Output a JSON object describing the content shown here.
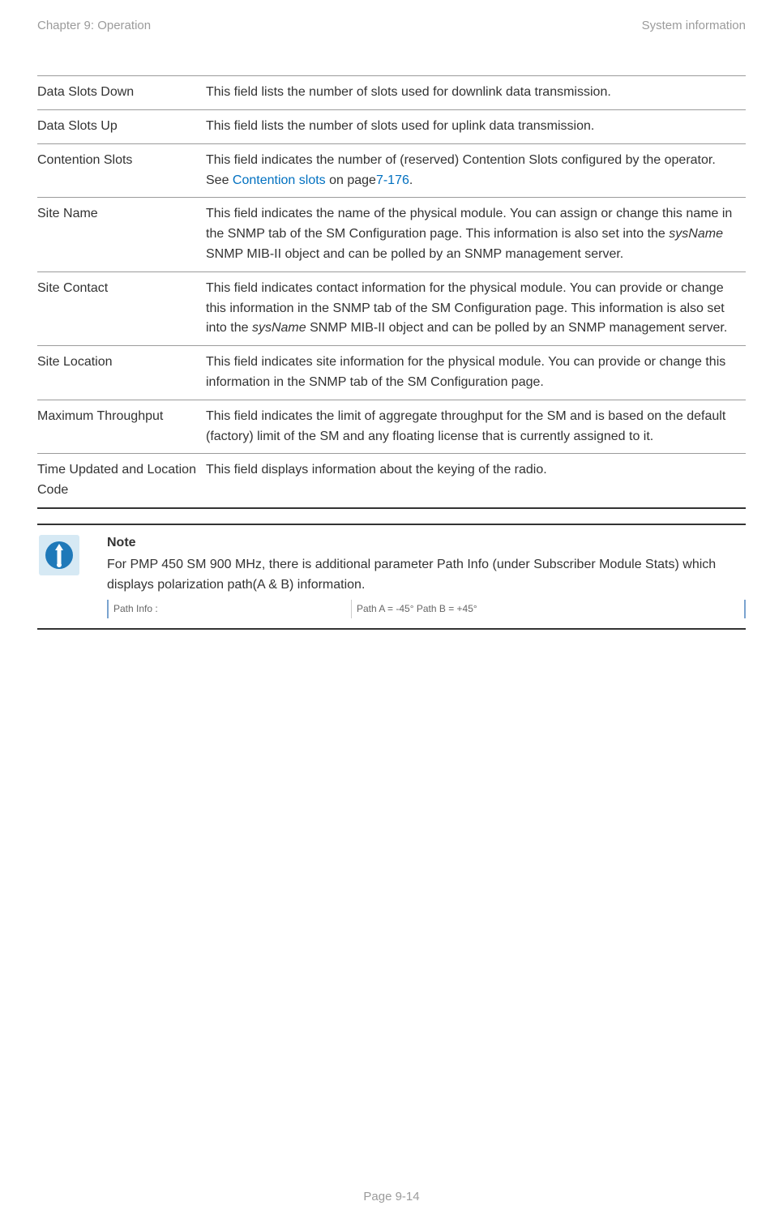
{
  "header": {
    "left": "Chapter 9:  Operation",
    "right": "System information"
  },
  "footer": "Page 9-14",
  "rows": [
    {
      "term": "Data Slots Down",
      "desc_parts": [
        {
          "t": "This field lists the number of slots used for downlink data transmission."
        }
      ]
    },
    {
      "term": "Data Slots Up",
      "desc_parts": [
        {
          "t": "This field lists the number of slots used for uplink data transmission."
        }
      ]
    },
    {
      "term": "Contention Slots",
      "desc_parts": [
        {
          "t": "This field indicates the number of (reserved) Contention Slots configured by the operator. See "
        },
        {
          "t": "Contention slots",
          "cls": "link"
        },
        {
          "t": " on page"
        },
        {
          "t": "7-176",
          "cls": "link"
        },
        {
          "t": "."
        }
      ]
    },
    {
      "term": "Site Name",
      "desc_parts": [
        {
          "t": "This field indicates the name of the physical module. You can assign or change this name in the SNMP tab of the SM Configuration page. This information is also set into the "
        },
        {
          "t": "sysName",
          "cls": "italic"
        },
        {
          "t": " SNMP MIB-II object and can be polled by an SNMP management server."
        }
      ]
    },
    {
      "term": "Site Contact",
      "desc_parts": [
        {
          "t": "This field indicates contact information for the physical module. You can provide or change this information in the SNMP tab of the SM Configuration page. This information is also set into the "
        },
        {
          "t": "sysName",
          "cls": "italic"
        },
        {
          "t": " SNMP MIB-II object and can be polled by an SNMP management server."
        }
      ]
    },
    {
      "term": "Site Location",
      "desc_parts": [
        {
          "t": "This field indicates site information for the physical module. You can provide or change this information in the SNMP tab of the SM Configuration page."
        }
      ]
    },
    {
      "term": "Maximum Throughput",
      "desc_parts": [
        {
          "t": "This field indicates the limit of aggregate throughput for the SM and is based on the default (factory) limit of the SM and any floating license that is currently assigned to it."
        }
      ]
    },
    {
      "term": "Time Updated and Location Code",
      "desc_parts": [
        {
          "t": "This field displays information about the keying of the radio."
        }
      ]
    }
  ],
  "note": {
    "title": "Note",
    "text": "For PMP 450 SM 900 MHz, there is additional parameter Path Info (under Subscriber Module Stats) which displays polarization path(A & B) information.",
    "path_label": "Path Info :",
    "path_value": "Path A = -45°   Path B = +45°"
  },
  "colors": {
    "header_text": "#9b9b9b",
    "body_text": "#333333",
    "link": "#0070c0",
    "rule": "#9b9b9b",
    "rule_heavy": "#333333",
    "note_icon_bg": "#d6e9f4",
    "note_icon_fg": "#1f79b9",
    "pathinfo_border": "#7aa3cf",
    "pathinfo_text": "#666666"
  }
}
